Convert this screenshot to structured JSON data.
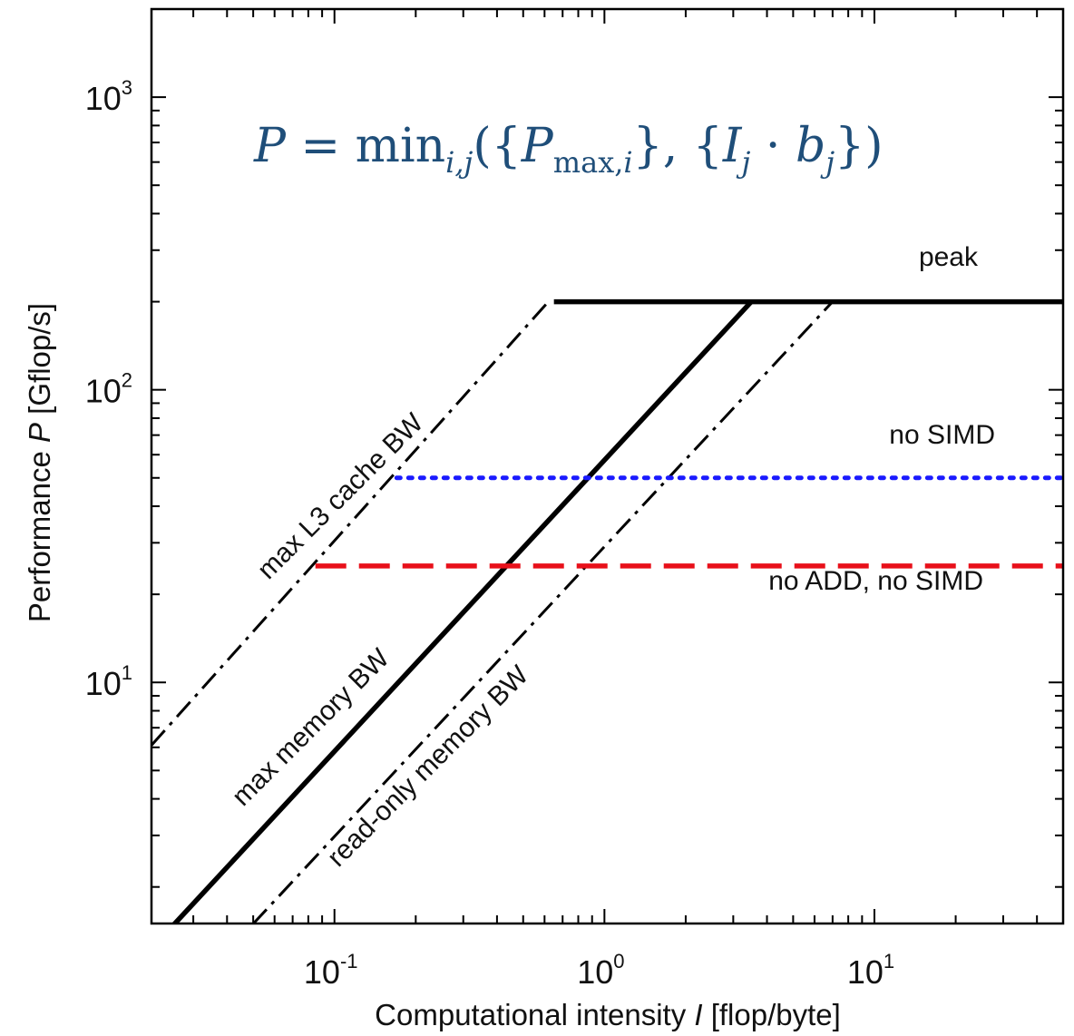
{
  "chart_data": {
    "type": "line",
    "scale": {
      "x": "log",
      "y": "log"
    },
    "xlim": [
      0.021,
      50
    ],
    "ylim": [
      1.5,
      2000
    ],
    "x_ticks": [
      {
        "value": 0.1,
        "base": "10",
        "exp": "-1"
      },
      {
        "value": 1,
        "base": "10",
        "exp": "0"
      },
      {
        "value": 10,
        "base": "10",
        "exp": "1"
      }
    ],
    "y_ticks": [
      {
        "value": 10,
        "base": "10",
        "exp": "1"
      },
      {
        "value": 100,
        "base": "10",
        "exp": "2"
      },
      {
        "value": 1000,
        "base": "10",
        "exp": "3"
      }
    ],
    "xlabel": {
      "before": "Computational intensity ",
      "var": "I",
      "after": " [flop/byte]"
    },
    "ylabel": {
      "before": "Performance ",
      "var": "P",
      "after": " [Gflop/s]"
    },
    "formula": {
      "lhs": "P",
      "eq": " = ",
      "fn": "min",
      "fn_sub": "i,j",
      "body_open": "({",
      "pmax": "P",
      "pmax_sub_up": "max,",
      "pmax_sub_i": "i",
      "mid": "}, {",
      "ij": "I",
      "ij_sub": "j",
      "dot": " · ",
      "bj": "b",
      "bj_sub": "j",
      "body_close": "})"
    },
    "series": [
      {
        "label": "peak",
        "style": "solid",
        "color": "#000000",
        "points": [
          [
            0.65,
            200
          ],
          [
            50,
            200
          ]
        ]
      },
      {
        "label": "max memory BW",
        "style": "solid",
        "color": "#000000",
        "points": [
          [
            0.021,
            1.23
          ],
          [
            3.5,
            200
          ]
        ]
      },
      {
        "label": "max L3 cache BW",
        "style": "dash-dot",
        "color": "#000000",
        "points": [
          [
            0.021,
            6.1
          ],
          [
            0.62,
            200
          ]
        ]
      },
      {
        "label": "read-only memory BW",
        "style": "dash-dot",
        "color": "#000000",
        "points": [
          [
            0.04,
            1.2
          ],
          [
            7.0,
            200
          ]
        ]
      },
      {
        "label": "no SIMD",
        "style": "dotted",
        "color": "#1a1aff",
        "points": [
          [
            0.17,
            50
          ],
          [
            50,
            50
          ]
        ]
      },
      {
        "label": "no ADD, no SIMD",
        "style": "dashed",
        "color": "#e8101a",
        "points": [
          [
            0.085,
            25
          ],
          [
            50,
            25
          ]
        ]
      }
    ]
  }
}
